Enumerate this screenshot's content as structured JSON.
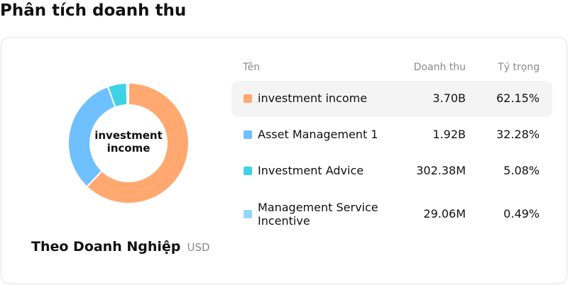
{
  "page": {
    "title": "Phân tích doanh thu"
  },
  "summary": {
    "title": "Theo Doanh Nghiệp",
    "unit": "USD"
  },
  "table": {
    "headers": {
      "name": "Tên",
      "revenue": "Doanh thu",
      "share": "Tỷ trọng"
    },
    "rows": [
      {
        "name": "investment income",
        "revenue": "3.70B",
        "share": "62.15%",
        "color": "#ffa970"
      },
      {
        "name": "Asset Management 1",
        "revenue": "1.92B",
        "share": "32.28%",
        "color": "#6fc0ff"
      },
      {
        "name": "Investment Advice",
        "revenue": "302.38M",
        "share": "5.08%",
        "color": "#3fd1e6"
      },
      {
        "name": "Management Service Incentive",
        "revenue": "29.06M",
        "share": "0.49%",
        "color": "#94d8f7"
      }
    ]
  },
  "chart_data": {
    "type": "pie",
    "center_label": "investment income",
    "categories": [
      "investment income",
      "Asset Management 1",
      "Investment Advice",
      "Management Service Incentive"
    ],
    "values": [
      62.15,
      32.28,
      5.08,
      0.49
    ],
    "colors": [
      "#ffa970",
      "#6fc0ff",
      "#3fd1e6",
      "#94d8f7"
    ],
    "legend": "right"
  }
}
